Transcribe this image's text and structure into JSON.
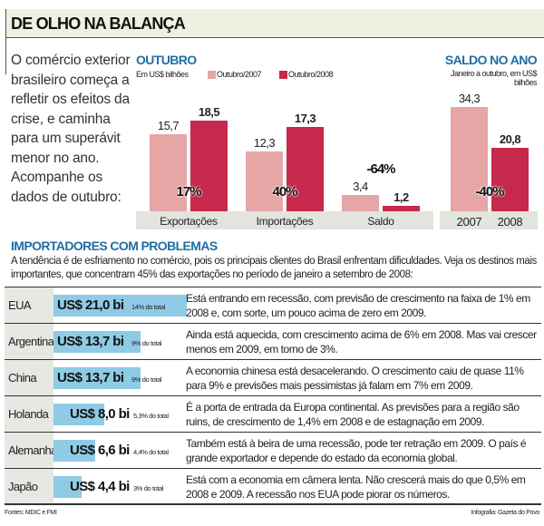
{
  "title": "DE OLHO NA BALANÇA",
  "intro": "O comércio exterior brasileiro começa a refletir os efeitos da crise, e caminha para um superávit menor no ano. Acompanhe os dados de outubro:",
  "colors": {
    "2007": "#e6a6a6",
    "2008": "#c5294b",
    "bar_blue": "#8fcbe4",
    "header_blue": "#1f6ea3"
  },
  "chart_data": [
    {
      "type": "bar",
      "title": "OUTUBRO",
      "subtitle": "Em US$ bilhões",
      "categories": [
        "Exportações",
        "Importações",
        "Saldo"
      ],
      "series": [
        {
          "name": "Outubro/2007",
          "values": [
            15.7,
            12.3,
            3.4
          ]
        },
        {
          "name": "Outubro/2008",
          "values": [
            18.5,
            17.3,
            1.2
          ]
        }
      ],
      "value_labels": {
        "2007": [
          "15,7",
          "12,3",
          "3,4"
        ],
        "2008": [
          "18,5",
          "17,3",
          "1,2"
        ]
      },
      "annotations": [
        "17%",
        "40%",
        "-64%"
      ],
      "legend": "top",
      "ylim": [
        0,
        20
      ]
    },
    {
      "type": "bar",
      "title": "SALDO NO ANO",
      "subtitle": "Janeiro a outubro, em US$ bilhões",
      "categories": [
        "2007",
        "2008"
      ],
      "values": [
        34.3,
        20.8
      ],
      "value_labels": [
        "34,3",
        "20,8"
      ],
      "annotations": [
        "-40%"
      ],
      "ylim": [
        0,
        36
      ]
    },
    {
      "type": "bar",
      "title": "IMPORTADORES COM PROBLEMAS",
      "orientation": "horizontal",
      "categories": [
        "EUA",
        "Argentina",
        "China",
        "Holanda",
        "Alemanha",
        "Japão"
      ],
      "values": [
        21.0,
        13.7,
        13.7,
        8.0,
        6.6,
        4.4
      ]
    }
  ],
  "importers": {
    "title": "IMPORTADORES COM PROBLEMAS",
    "description": "A tendência é de esfriamento no comércio, pois os principais clientes do Brasil enfrentam dificuldades. Veja os destinos mais importantes, que concentram 45% das exportações no período de janeiro a setembro de 2008:",
    "rows": [
      {
        "country": "EUA",
        "value": "US$ 21,0 bi",
        "amount": 21.0,
        "share": "14% do total",
        "text": "Está entrando em recessão, com previsão de crescimento na faixa de 1% em 2008 e, com sorte, um pouco acima de zero em 2009."
      },
      {
        "country": "Argentina",
        "value": "US$ 13,7 bi",
        "amount": 13.7,
        "share": "9% do total",
        "text": "Ainda está aquecida, com crescimento acima de 6% em 2008. Mas vai crescer menos em 2009, em torno de 3%."
      },
      {
        "country": "China",
        "value": "US$ 13,7 bi",
        "amount": 13.7,
        "share": "9% do total",
        "text": "A economia chinesa está desacelerando. O crescimento caiu de quase 11% para 9% e previsões mais pessimistas já falam em 7% em 2009."
      },
      {
        "country": "Holanda",
        "value": "US$ 8,0 bi",
        "amount": 8.0,
        "share": "5,3% do total",
        "text": "É a porta de entrada da Europa continental. As previsões para a região são ruins, de crescimento de 1,4% em 2008 e de estagnação em 2009."
      },
      {
        "country": "Alemanha",
        "value": "US$ 6,6 bi",
        "amount": 6.6,
        "share": "4,4% do total",
        "text": "Também está à beira de uma recessão, pode ter retração em 2009. O país é grande exportador e depende do estado da economia global."
      },
      {
        "country": "Japão",
        "value": "US$ 4,4 bi",
        "amount": 4.4,
        "share": "3% do total",
        "text": "Está com a economia em câmera lenta. Não crescerá mais do que 0,5% em 2008 e 2009. A recessão nos EUA pode piorar os números."
      }
    ]
  },
  "footer": {
    "sources": "Fontes: MDIC e FMI",
    "credit": "Infografia: Gazeta do Povo"
  }
}
